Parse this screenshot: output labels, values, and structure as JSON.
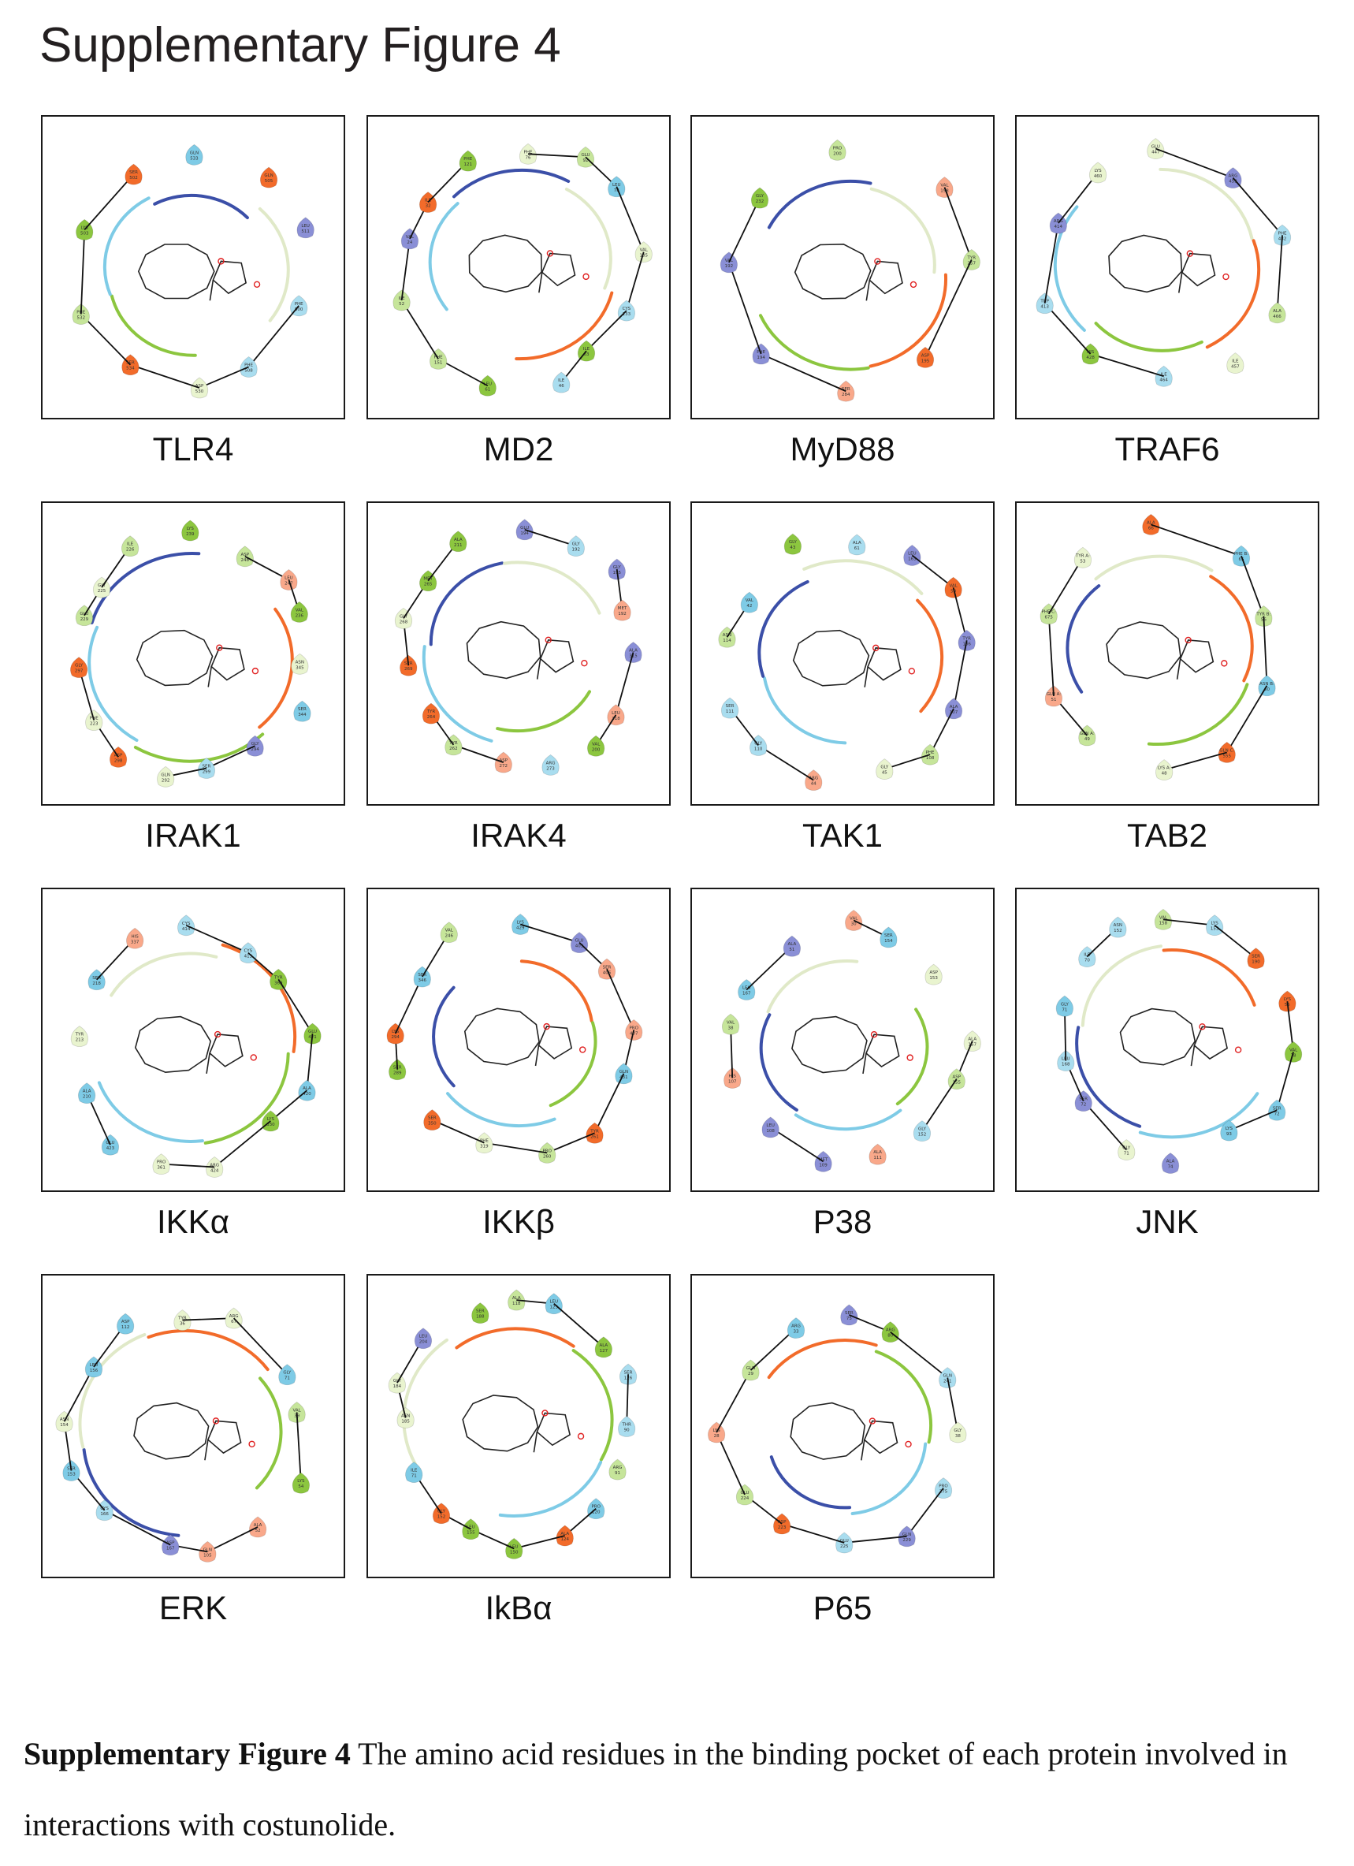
{
  "title": "Supplementary Figure 4",
  "panels": [
    {
      "label": "TLR4",
      "residues": [
        "GLN 533",
        "GLN 505",
        "LEU 511",
        "PHE 500",
        "PHE 508",
        "ASP 530",
        "SER 534",
        "PHE 532",
        "LYS 503",
        "SER 502"
      ]
    },
    {
      "label": "MD2",
      "residues": [
        "PHE 76",
        "GLU 92",
        "LEU 78",
        "VAL 135",
        "CYS 133",
        "ILE 63",
        "ILE 46",
        "LEU 61",
        "PHE 151",
        "ILE 52",
        "VAL 24",
        "ILE 32",
        "PHE 121"
      ]
    },
    {
      "label": "MyD88",
      "residues": [
        "PRO 200",
        "VAL 198",
        "TYR 257",
        "ASP 195",
        "SER 284",
        "PHE 194",
        "VAL 192",
        "GLY 232"
      ]
    },
    {
      "label": "TRAF6",
      "residues": [
        "GLU 447",
        "ARG 453",
        "PHE 482",
        "ALA 466",
        "ILE 457",
        "ILE 464",
        "HIS 428",
        "TRP 413",
        "ARG 414",
        "LYS 460"
      ]
    },
    {
      "label": "IRAK1",
      "residues": [
        "LYS 239",
        "ASP 248",
        "LEU 247",
        "VAL 236",
        "ASN 345",
        "SER 344",
        "GLY 294",
        "SER 299",
        "GLN 292",
        "ASP 298",
        "PHE 223",
        "GLY 297",
        "GLU 229",
        "GLY 225",
        "ILE 226"
      ]
    },
    {
      "label": "IRAK4",
      "residues": [
        "GLU 194",
        "GLY 192",
        "GLY 195",
        "MET 192",
        "ALA 315",
        "LEU 318",
        "VAL 200",
        "ARG 273",
        "ASP 272",
        "TYR 262",
        "TYR 264",
        "SER 269",
        "GLY 268",
        "MET 265",
        "ALA 211"
      ]
    },
    {
      "label": "TAK1",
      "residues": [
        "ALA 61",
        "LEU 163",
        "VAL 50",
        "TYR 106",
        "ALA 107",
        "PHE 108",
        "GLY 45",
        "ARG 44",
        "GLY 110",
        "SER 111",
        "ASN 114",
        "VAL 42",
        "GLY 43"
      ]
    },
    {
      "label": "TAB2",
      "residues": [
        "ALA 66",
        "PHE B: 65",
        "TYR B: 56",
        "ASN B: 60",
        "GLN C: 555",
        "LYS A: 48",
        "GLN A: 49",
        "GLU A: 51",
        "PHE C: 675",
        "TYR A: 53"
      ]
    },
    {
      "label": "IKKα",
      "residues": [
        "CYS 414",
        "CYS 413",
        "TYR 369",
        "GLU 421",
        "ALA 420",
        "LYS 330",
        "ARG 424",
        "PRO 361",
        "GLU 423",
        "ALA 210",
        "TYR 213",
        "SER 218",
        "HIS 337"
      ]
    },
    {
      "label": "IKKβ",
      "residues": [
        "LYS 429",
        "GLU 403",
        "SER 406",
        "PRO 407",
        "GLN 431",
        "TYR 261",
        "PRO 260",
        "PHE 319",
        "SER 350",
        "SER 289",
        "LYS 294",
        "SER 346",
        "VAL 246"
      ]
    },
    {
      "label": "P38",
      "residues": [
        "VAL 30",
        "SER 154",
        "ASP 153",
        "ALA 157",
        "ASP 155",
        "GLY 152",
        "ALA 111",
        "MET 109",
        "LEU 108",
        "HIS 107",
        "VAL 38",
        "LEU 167",
        "ALA 51"
      ]
    },
    {
      "label": "JNK",
      "residues": [
        "VAL 158",
        "LYS 153",
        "SER 190",
        "LYS 55",
        "VAL 78",
        "SER 72",
        "LYS 93",
        "ALA 74",
        "GLY 71",
        "SER 72",
        "LEU 168",
        "GLY 71",
        "ILE 70",
        "ASN 152"
      ]
    },
    {
      "label": "ERK",
      "residues": [
        "TYR 36",
        "ARG 67",
        "GLY 71",
        "VAL 39",
        "LYS 54",
        "ALA 52",
        "GLN 105",
        "ASP 167",
        "CYS 166",
        "SER 153",
        "ASN 154",
        "LEU 156",
        "ASP 112"
      ]
    },
    {
      "label": "IkBα",
      "residues": [
        "ALA 118",
        "LEU 123",
        "ALA 127",
        "SER 126",
        "THR 90",
        "ARG 91",
        "PRO 120",
        "ALA 124",
        "LEU 150",
        "LEU 155",
        "GLY 152",
        "ILE 71",
        "ASN 185",
        "GLY 184",
        "LEU 204",
        "SER 188"
      ]
    },
    {
      "label": "P65",
      "residues": [
        "SER 75",
        "ARG 80",
        "GLN 241",
        "GLY 38",
        "PRO 275",
        "GLN 229",
        "GLU 225",
        "ASP 223",
        "GLU 224",
        "LYS 28",
        "GLN 29",
        "ARG 33"
      ]
    }
  ],
  "caption": {
    "bold": "Supplementary Figure 4",
    "text": " The amino acid residues in the binding pocket of each protein involved in interactions with costunolide."
  }
}
